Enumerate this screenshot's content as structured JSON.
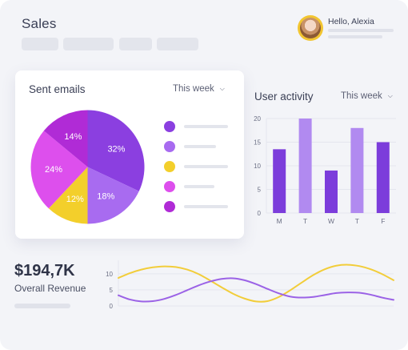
{
  "header": {
    "title": "Sales",
    "greeting": "Hello, Alexia"
  },
  "sent_emails": {
    "title": "Sent emails",
    "period": "This week",
    "legend_colors": [
      "#8b3fe0",
      "#a86bf0",
      "#f3cf2b",
      "#dd4fed",
      "#b02bd6"
    ]
  },
  "user_activity": {
    "title": "User activity",
    "period": "This week"
  },
  "revenue": {
    "value": "$194,7K",
    "label": "Overall Revenue"
  },
  "chart_data": [
    {
      "type": "pie",
      "labels": [
        "32%",
        "18%",
        "12%",
        "24%",
        "14%"
      ],
      "values": [
        32,
        18,
        12,
        24,
        14
      ],
      "colors": [
        "#8b3fe0",
        "#a86bf0",
        "#f3cf2b",
        "#dd4fed",
        "#b02bd6"
      ]
    },
    {
      "type": "bar",
      "categories": [
        "M",
        "T",
        "W",
        "T",
        "F"
      ],
      "values": [
        13.5,
        20,
        9,
        18,
        15
      ],
      "colors": [
        "#7c3ddb",
        "#b18af0",
        "#7c3ddb",
        "#b18af0",
        "#7c3ddb"
      ],
      "ylim": [
        0,
        20
      ],
      "yticks": [
        0,
        5,
        10,
        15,
        20
      ],
      "grid": true
    },
    {
      "type": "line",
      "ylim": [
        0,
        10
      ],
      "yticks": [
        0,
        5,
        10
      ],
      "x": [
        0,
        1,
        2,
        3,
        4,
        5,
        6,
        7,
        8,
        9,
        10,
        11,
        12,
        13,
        14,
        15,
        16,
        17,
        18,
        19,
        20,
        21,
        22,
        23,
        24
      ],
      "series": [
        {
          "color": "#f2cd3a",
          "values": [
            8.7,
            10.2,
            11.3,
            12.0,
            12.3,
            12.1,
            11.3,
            9.9,
            7.9,
            5.8,
            3.8,
            2.3,
            1.4,
            1.5,
            2.8,
            4.9,
            7.3,
            9.6,
            11.4,
            12.5,
            12.8,
            12.4,
            11.4,
            9.9,
            8.0
          ]
        },
        {
          "color": "#9b62e6",
          "values": [
            3.3,
            2.0,
            1.4,
            1.5,
            2.2,
            3.4,
            4.9,
            6.4,
            7.6,
            8.4,
            8.6,
            8.0,
            6.8,
            5.3,
            3.9,
            2.9,
            2.6,
            2.8,
            3.4,
            4.0,
            4.2,
            4.1,
            3.5,
            2.6,
            1.9
          ]
        }
      ]
    }
  ]
}
